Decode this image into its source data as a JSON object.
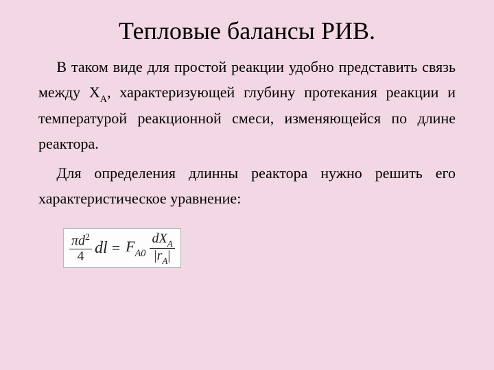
{
  "colors": {
    "background": "#f2d7e4",
    "text": "#000000",
    "formula_box_bg": "#fdfdfd",
    "formula_box_border": "#b8b8b8"
  },
  "typography": {
    "family": "Times New Roman",
    "title_fontsize": 36,
    "body_fontsize": 22,
    "body_line_height": 1.68,
    "formula_fontsize": 22
  },
  "title": "Тепловые балансы РИВ.",
  "para1_pre": "В таком виде для простой реакции удобно представить связь между X",
  "para1_sub": "А",
  "para1_post": ", характеризующей глубину протекания реакции и температурой реакционной смеси, изменяющейся по длине реактора.",
  "para2": "Для определения длинны реактора нужно решить его характеристическое уравнение:",
  "formula": {
    "lhs_frac_num_sym": "π",
    "lhs_frac_num_var": "d",
    "lhs_frac_num_sup": "2",
    "lhs_frac_den": "4",
    "lhs_dl": "dl",
    "eq": "=",
    "rhs_F": "F",
    "rhs_F_sub": "A0",
    "rhs_frac_num_d": "d",
    "rhs_frac_num_X": "X",
    "rhs_frac_num_sub": "A",
    "rhs_frac_den_bar1": "|",
    "rhs_frac_den_r": "r",
    "rhs_frac_den_sub": "A",
    "rhs_frac_den_bar2": "|"
  }
}
